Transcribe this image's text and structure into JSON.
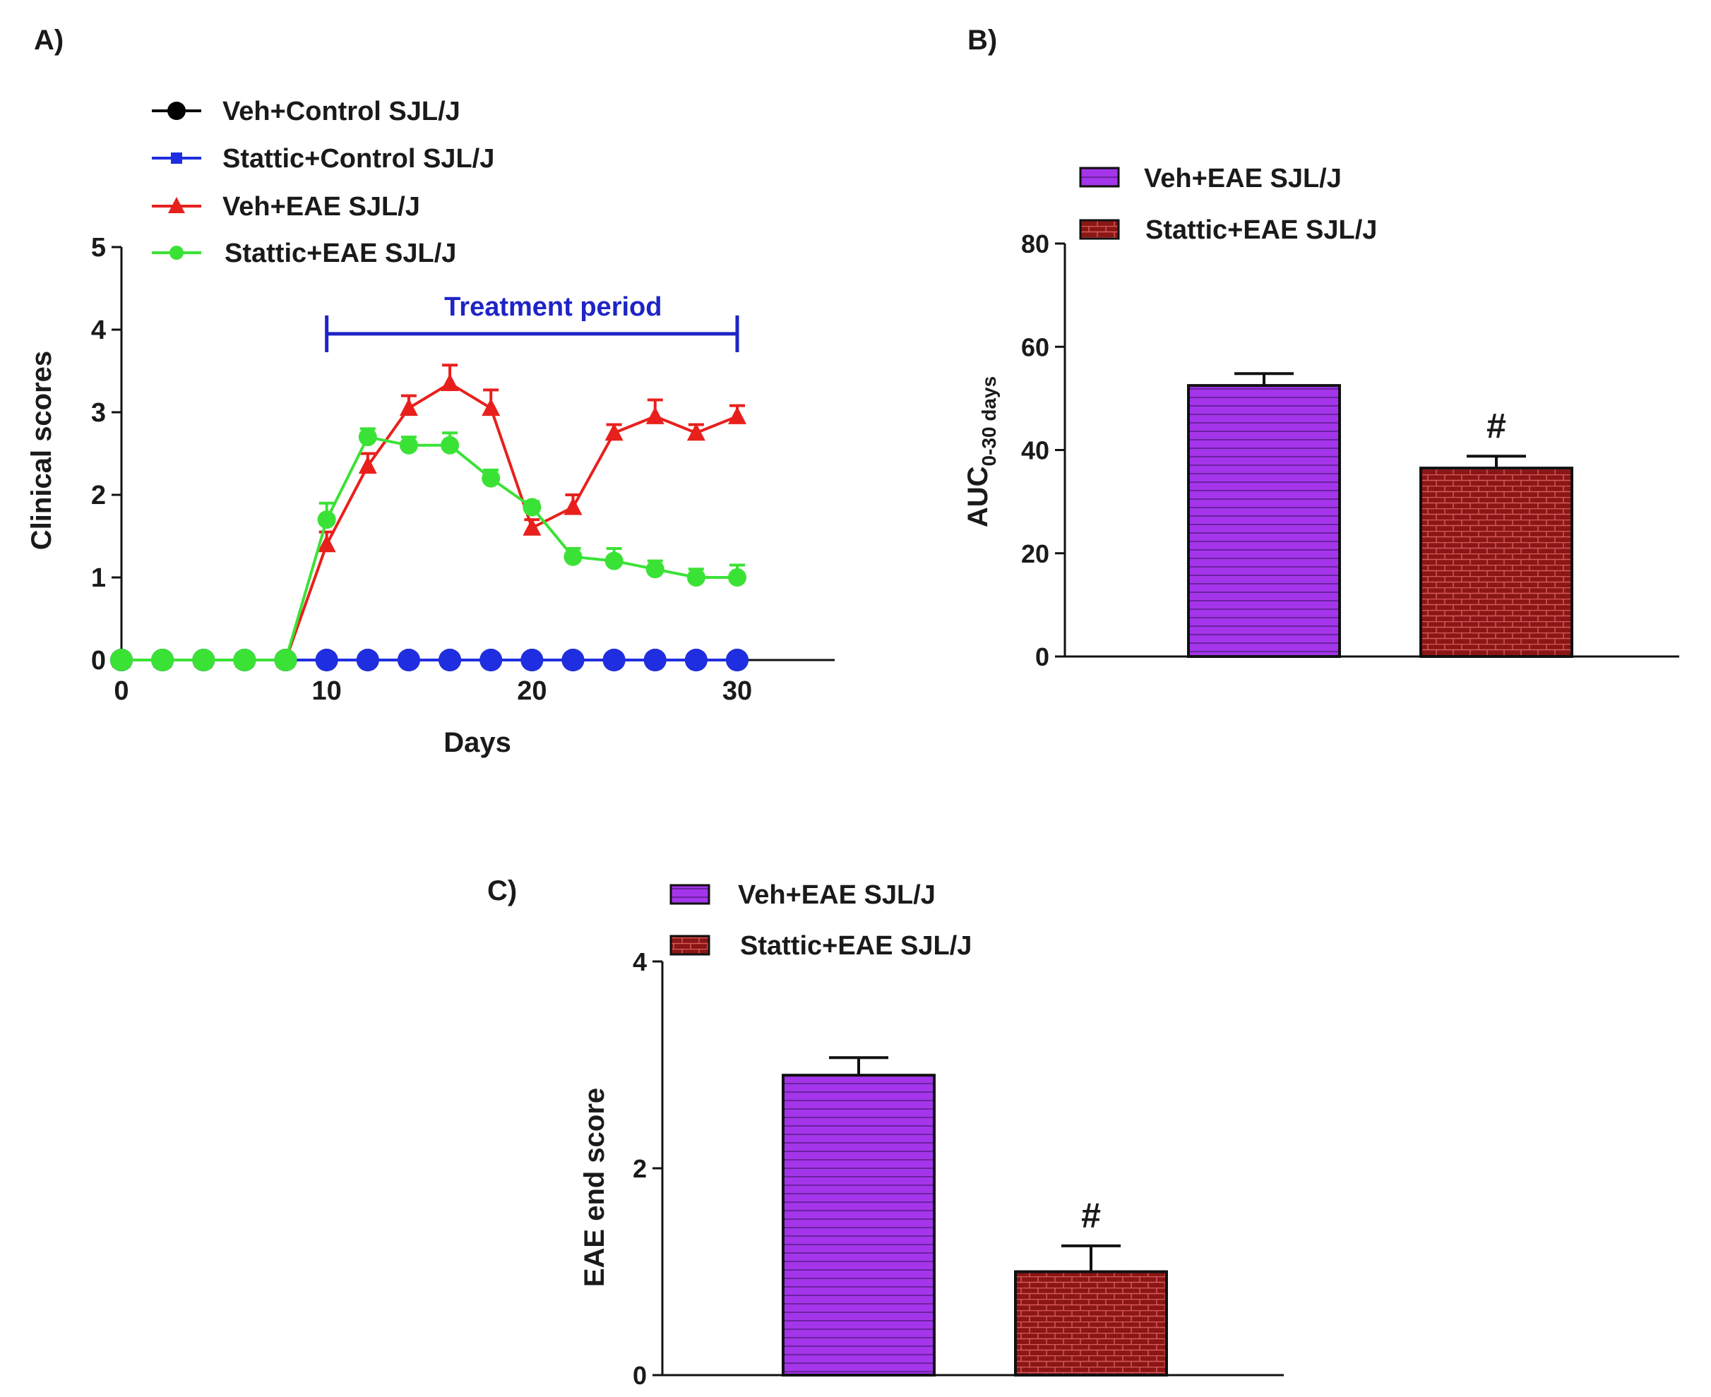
{
  "chart_data": [
    {
      "panel_label": "A)",
      "type": "line",
      "title": "",
      "xlabel": "Days",
      "ylabel": "Clinical scores",
      "xlim": [
        0,
        35
      ],
      "ylim": [
        0,
        5
      ],
      "xticks": [
        0,
        10,
        20,
        30
      ],
      "yticks": [
        0,
        1,
        2,
        3,
        4,
        5
      ],
      "x": [
        0,
        2,
        4,
        6,
        8,
        10,
        12,
        14,
        16,
        18,
        20,
        22,
        24,
        26,
        28,
        30
      ],
      "annotation": {
        "text": "Treatment period",
        "x_start": 10,
        "x_end": 30,
        "y": 3.95,
        "color": "#1f24c6"
      },
      "series": [
        {
          "name": "Veh+Control SJL/J",
          "color": "#000000",
          "marker": "circle",
          "values": [
            0,
            0,
            0,
            0,
            0,
            0,
            0,
            0,
            0,
            0,
            0,
            0,
            0,
            0,
            0,
            0
          ],
          "errors": [
            0,
            0,
            0,
            0,
            0,
            0,
            0,
            0,
            0,
            0,
            0,
            0,
            0,
            0,
            0,
            0
          ]
        },
        {
          "name": "Stattic+Control SJL/J",
          "color": "#1f2ee0",
          "marker": "square",
          "values": [
            0,
            0,
            0,
            0,
            0,
            0,
            0,
            0,
            0,
            0,
            0,
            0,
            0,
            0,
            0,
            0
          ],
          "errors": [
            0,
            0,
            0,
            0,
            0,
            0,
            0,
            0,
            0,
            0,
            0,
            0,
            0,
            0,
            0,
            0
          ]
        },
        {
          "name": "Veh+EAE SJL/J",
          "color": "#e8201c",
          "marker": "triangle",
          "values": [
            0,
            0,
            0,
            0,
            0,
            1.4,
            2.35,
            3.05,
            3.35,
            3.05,
            1.6,
            1.85,
            2.75,
            2.95,
            2.75,
            2.95
          ],
          "errors": [
            0,
            0,
            0,
            0,
            0,
            0.15,
            0.15,
            0.15,
            0.22,
            0.22,
            0.1,
            0.15,
            0.1,
            0.2,
            0.1,
            0.13
          ]
        },
        {
          "name": "Stattic+EAE SJL/J",
          "color": "#3be236",
          "marker": "circle",
          "values": [
            0,
            0,
            0,
            0,
            0,
            1.7,
            2.7,
            2.6,
            2.6,
            2.2,
            1.85,
            1.25,
            1.2,
            1.1,
            1.0,
            1.0
          ],
          "errors": [
            0,
            0,
            0,
            0,
            0,
            0.2,
            0.1,
            0.1,
            0.15,
            0.1,
            0.07,
            0.1,
            0.15,
            0.1,
            0.1,
            0.15
          ]
        }
      ]
    },
    {
      "panel_label": "B)",
      "type": "bar",
      "title": "",
      "xlabel": "",
      "ylabel": "AUC",
      "ylabel_subscript": "0-30 days",
      "ylim": [
        0,
        80
      ],
      "yticks": [
        0,
        20,
        40,
        60,
        80
      ],
      "categories": [
        "Veh+EAE SJL/J",
        "Stattic+EAE SJL/J"
      ],
      "values": [
        52.5,
        36.5
      ],
      "errors": [
        2.3,
        2.3
      ],
      "significance": [
        "",
        "#"
      ],
      "fills": [
        "purple-stripes",
        "red-bricks"
      ]
    },
    {
      "panel_label": "C)",
      "type": "bar",
      "title": "",
      "xlabel": "",
      "ylabel": "EAE end score",
      "ylim": [
        0,
        4
      ],
      "yticks": [
        0,
        2,
        4
      ],
      "categories": [
        "Veh+EAE SJL/J",
        "Stattic+EAE SJL/J"
      ],
      "values": [
        2.9,
        1.0
      ],
      "errors": [
        0.17,
        0.25
      ],
      "significance": [
        "",
        "#"
      ],
      "fills": [
        "purple-stripes",
        "red-bricks"
      ]
    }
  ]
}
